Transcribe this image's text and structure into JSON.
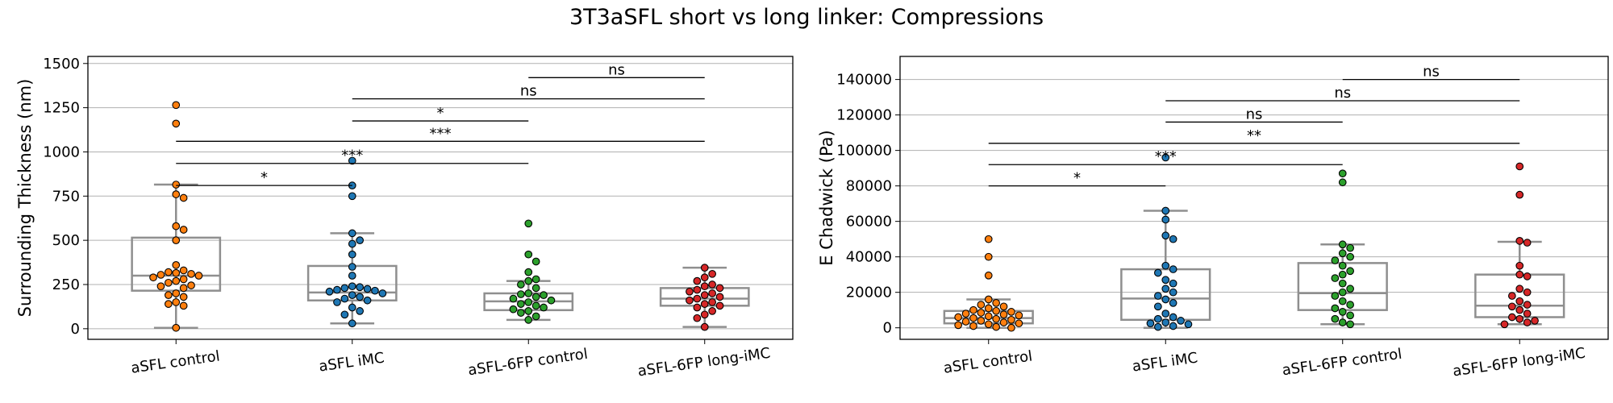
{
  "figure": {
    "title": "3T3aSFL short vs long linker: Compressions"
  },
  "colors": {
    "aSFL control": "#ff7f0e",
    "aSFL iMC": "#1f77b4",
    "aSFL-6FP control": "#2ca02c",
    "aSFL-6FP long-iMC": "#d62728",
    "box": "#8f8f8f",
    "grid": "#b0b0b0"
  },
  "chart_data": [
    {
      "type": "box",
      "ylabel": "Surrounding Thickness (nm)",
      "xlabel": "",
      "ylim": [
        -60,
        1540
      ],
      "yticks": [
        0,
        250,
        500,
        750,
        1000,
        1250,
        1500
      ],
      "grid": "y",
      "categories": [
        "aSFL control",
        "aSFL iMC",
        "aSFL-6FP control",
        "aSFL-6FP long-iMC"
      ],
      "boxes": [
        {
          "q1": 215,
          "median": 300,
          "q3": 515,
          "whisker_low": 5,
          "whisker_high": 815
        },
        {
          "q1": 160,
          "median": 205,
          "q3": 355,
          "whisker_low": 30,
          "whisker_high": 540
        },
        {
          "q1": 105,
          "median": 155,
          "q3": 200,
          "whisker_low": 50,
          "whisker_high": 270
        },
        {
          "q1": 130,
          "median": 170,
          "q3": 230,
          "whisker_low": 10,
          "whisker_high": 345
        }
      ],
      "points": [
        [
          1265,
          1160,
          815,
          760,
          740,
          580,
          560,
          500,
          360,
          330,
          320,
          315,
          310,
          305,
          300,
          290,
          280,
          270,
          260,
          245,
          240,
          230,
          200,
          190,
          180,
          150,
          140,
          130,
          5
        ],
        [
          950,
          810,
          750,
          540,
          500,
          480,
          420,
          350,
          300,
          240,
          235,
          230,
          225,
          220,
          215,
          210,
          200,
          190,
          180,
          170,
          160,
          150,
          120,
          100,
          80,
          30
        ],
        [
          595,
          420,
          380,
          320,
          280,
          270,
          250,
          230,
          200,
          195,
          190,
          180,
          170,
          160,
          150,
          140,
          130,
          120,
          110,
          100,
          90,
          70,
          50
        ],
        [
          345,
          310,
          290,
          270,
          250,
          240,
          230,
          220,
          210,
          200,
          190,
          180,
          170,
          160,
          150,
          140,
          130,
          120,
          100,
          80,
          60,
          10
        ]
      ],
      "annotations": [
        {
          "from": 0,
          "to": 1,
          "y": 810,
          "text": "*"
        },
        {
          "from": 0,
          "to": 2,
          "y": 935,
          "text": "***"
        },
        {
          "from": 0,
          "to": 3,
          "y": 1060,
          "text": "***"
        },
        {
          "from": 1,
          "to": 2,
          "y": 1175,
          "text": "*"
        },
        {
          "from": 1,
          "to": 3,
          "y": 1300,
          "text": "ns"
        },
        {
          "from": 2,
          "to": 3,
          "y": 1420,
          "text": "ns"
        }
      ]
    },
    {
      "type": "box",
      "ylabel": "E Chadwick (Pa)",
      "xlabel": "",
      "ylim": [
        -6500,
        153000
      ],
      "yticks": [
        0,
        20000,
        40000,
        60000,
        80000,
        100000,
        120000,
        140000
      ],
      "grid": "y",
      "categories": [
        "aSFL control",
        "aSFL iMC",
        "aSFL-6FP control",
        "aSFL-6FP long-iMC"
      ],
      "boxes": [
        {
          "q1": 2500,
          "median": 5500,
          "q3": 9500,
          "whisker_low": 0,
          "whisker_high": 16000
        },
        {
          "q1": 4500,
          "median": 16500,
          "q3": 33000,
          "whisker_low": 0,
          "whisker_high": 66000
        },
        {
          "q1": 10000,
          "median": 19500,
          "q3": 36500,
          "whisker_low": 2000,
          "whisker_high": 47000
        },
        {
          "q1": 6000,
          "median": 12500,
          "q3": 30000,
          "whisker_low": 2000,
          "whisker_high": 48500
        }
      ],
      "points": [
        [
          50000,
          40000,
          29500,
          16000,
          14000,
          13000,
          12000,
          11000,
          10000,
          9500,
          9000,
          8500,
          8000,
          7500,
          7000,
          6500,
          6000,
          5500,
          5000,
          4500,
          4000,
          3500,
          3000,
          2500,
          2000,
          1500,
          1000,
          500,
          0
        ],
        [
          96000,
          66000,
          61000,
          52000,
          50000,
          35000,
          33000,
          31000,
          27000,
          25000,
          22000,
          20000,
          18000,
          16000,
          14000,
          12000,
          8000,
          6000,
          5000,
          4000,
          3000,
          2500,
          2000,
          1000,
          500
        ],
        [
          87000,
          82000,
          47000,
          45000,
          42000,
          40000,
          38000,
          35000,
          32000,
          30000,
          28000,
          25000,
          22000,
          20000,
          18000,
          15000,
          13000,
          11000,
          9000,
          7000,
          5000,
          3000,
          2000
        ],
        [
          91000,
          75000,
          49000,
          48000,
          35000,
          30000,
          29000,
          22000,
          20000,
          18000,
          15000,
          13000,
          12000,
          10000,
          8000,
          6000,
          5000,
          4000,
          3000,
          2000
        ]
      ],
      "annotations": [
        {
          "from": 0,
          "to": 1,
          "y": 80000,
          "text": "*"
        },
        {
          "from": 0,
          "to": 2,
          "y": 92000,
          "text": "***"
        },
        {
          "from": 0,
          "to": 3,
          "y": 104000,
          "text": "**"
        },
        {
          "from": 1,
          "to": 2,
          "y": 116000,
          "text": "ns"
        },
        {
          "from": 1,
          "to": 3,
          "y": 128000,
          "text": "ns"
        },
        {
          "from": 2,
          "to": 3,
          "y": 140000,
          "text": "ns"
        }
      ]
    }
  ]
}
